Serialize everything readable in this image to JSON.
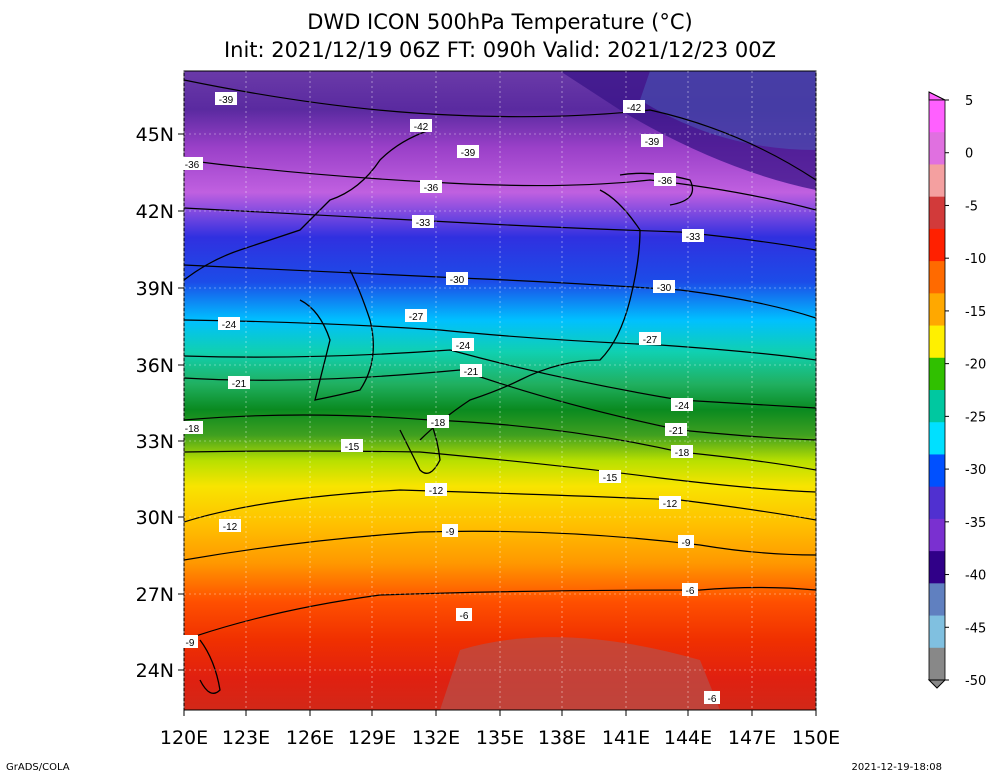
{
  "header": {
    "title_line1": "DWD ICON 500hPa Temperature (°C)",
    "title_line2": "Init: 2021/12/19 06Z  FT: 090h  Valid: 2021/12/23 00Z"
  },
  "map": {
    "lat_labels": [
      "45N",
      "42N",
      "39N",
      "36N",
      "33N",
      "30N",
      "27N",
      "24N"
    ],
    "lon_labels": [
      "120E",
      "123E",
      "126E",
      "129E",
      "132E",
      "135E",
      "138E",
      "141E",
      "144E",
      "147E",
      "150E"
    ],
    "contour_labels": [
      "-39",
      "-42",
      "-39",
      "-42",
      "-39",
      "-36",
      "-36",
      "-36",
      "-33",
      "-33",
      "-30",
      "-30",
      "-27",
      "-27",
      "-24",
      "-24",
      "-24",
      "-21",
      "-21",
      "-21",
      "-18",
      "-18",
      "-18",
      "-15",
      "-15",
      "-12",
      "-12",
      "-12",
      "-9",
      "-9",
      "-9",
      "-6",
      "-6",
      "-6"
    ]
  },
  "colorbar": {
    "tick_labels": [
      "5",
      "0",
      "-5",
      "-10",
      "-15",
      "-20",
      "-25",
      "-30",
      "-35",
      "-40",
      "-45",
      "-50"
    ],
    "colors": [
      "#ff60ff",
      "#e070e0",
      "#f4a0a0",
      "#d23a3a",
      "#ff2000",
      "#ff6a00",
      "#ffa800",
      "#fff000",
      "#30c000",
      "#00c8a0",
      "#00e0ff",
      "#0050ff",
      "#5030d0",
      "#7a30d0",
      "#300088",
      "#6080c0",
      "#80c0e0",
      "#888888"
    ]
  },
  "footer": {
    "left": "GrADS/COLA",
    "right": "2021-12-19-18:08"
  }
}
